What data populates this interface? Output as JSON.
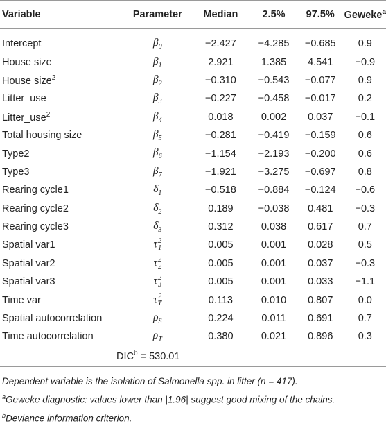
{
  "columns": {
    "variable": "Variable",
    "parameter": "Parameter",
    "median": "Median",
    "lower": "2.5%",
    "upper": "97.5%",
    "geweke": "Geweke",
    "geweke_sup": "a"
  },
  "rows": [
    {
      "variable": "Intercept",
      "var_sup": "",
      "param_sym": "β",
      "param_sub": "0",
      "param_sup": "",
      "median": "−2.427",
      "lower": "−4.285",
      "upper": "−0.685",
      "geweke": "0.9"
    },
    {
      "variable": "House size",
      "var_sup": "",
      "param_sym": "β",
      "param_sub": "1",
      "param_sup": "",
      "median": "2.921",
      "lower": "1.385",
      "upper": "4.541",
      "geweke": "−0.9"
    },
    {
      "variable": "House size",
      "var_sup": "2",
      "param_sym": "β",
      "param_sub": "2",
      "param_sup": "",
      "median": "−0.310",
      "lower": "−0.543",
      "upper": "−0.077",
      "geweke": "0.9"
    },
    {
      "variable": "Litter_use",
      "var_sup": "",
      "param_sym": "β",
      "param_sub": "3",
      "param_sup": "",
      "median": "−0.227",
      "lower": "−0.458",
      "upper": "−0.017",
      "geweke": "0.2"
    },
    {
      "variable": "Litter_use",
      "var_sup": "2",
      "param_sym": "β",
      "param_sub": "4",
      "param_sup": "",
      "median": "0.018",
      "lower": "0.002",
      "upper": "0.037",
      "geweke": "−0.1"
    },
    {
      "variable": "Total housing size",
      "var_sup": "",
      "param_sym": "β",
      "param_sub": "5",
      "param_sup": "",
      "median": "−0.281",
      "lower": "−0.419",
      "upper": "−0.159",
      "geweke": "0.6"
    },
    {
      "variable": "Type2",
      "var_sup": "",
      "param_sym": "β",
      "param_sub": "6",
      "param_sup": "",
      "median": "−1.154",
      "lower": "−2.193",
      "upper": "−0.200",
      "geweke": "0.6"
    },
    {
      "variable": "Type3",
      "var_sup": "",
      "param_sym": "β",
      "param_sub": "7",
      "param_sup": "",
      "median": "−1.921",
      "lower": "−3.275",
      "upper": "−0.697",
      "geweke": "0.8"
    },
    {
      "variable": "Rearing cycle1",
      "var_sup": "",
      "param_sym": "δ",
      "param_sub": "1",
      "param_sup": "",
      "median": "−0.518",
      "lower": "−0.884",
      "upper": "−0.124",
      "geweke": "−0.6"
    },
    {
      "variable": "Rearing cycle2",
      "var_sup": "",
      "param_sym": "δ",
      "param_sub": "2",
      "param_sup": "",
      "median": "0.189",
      "lower": "−0.038",
      "upper": "0.481",
      "geweke": "−0.3"
    },
    {
      "variable": "Rearing cycle3",
      "var_sup": "",
      "param_sym": "δ",
      "param_sub": "3",
      "param_sup": "",
      "median": "0.312",
      "lower": "0.038",
      "upper": "0.617",
      "geweke": "0.7"
    },
    {
      "variable": "Spatial var1",
      "var_sup": "",
      "param_sym": "τ",
      "param_sub": "1",
      "param_sup": "2",
      "median": "0.005",
      "lower": "0.001",
      "upper": "0.028",
      "geweke": "0.5"
    },
    {
      "variable": "Spatial var2",
      "var_sup": "",
      "param_sym": "τ",
      "param_sub": "2",
      "param_sup": "2",
      "median": "0.005",
      "lower": "0.001",
      "upper": "0.037",
      "geweke": "−0.3"
    },
    {
      "variable": "Spatial var3",
      "var_sup": "",
      "param_sym": "τ",
      "param_sub": "3",
      "param_sup": "2",
      "median": "0.005",
      "lower": "0.001",
      "upper": "0.033",
      "geweke": "−1.1"
    },
    {
      "variable": "Time var",
      "var_sup": "",
      "param_sym": "τ",
      "param_sub": "T",
      "param_sup": "2",
      "median": "0.113",
      "lower": "0.010",
      "upper": "0.807",
      "geweke": "0.0"
    },
    {
      "variable": "Spatial autocorrelation",
      "var_sup": "",
      "param_sym": "ρ",
      "param_sub": "S",
      "param_sup": "",
      "median": "0.224",
      "lower": "0.011",
      "upper": "0.691",
      "geweke": "0.7"
    },
    {
      "variable": "Time autocorrelation",
      "var_sup": "",
      "param_sym": "ρ",
      "param_sub": "T",
      "param_sup": "",
      "median": "0.380",
      "lower": "0.021",
      "upper": "0.896",
      "geweke": "0.3"
    }
  ],
  "dic": {
    "label": "DIC",
    "sup": "b",
    "value": " = 530.01"
  },
  "notes": {
    "line1": "Dependent variable is the isolation of Salmonella spp. in litter (n = 417).",
    "line2_sup": "a",
    "line2": "Geweke diagnostic: values lower than |1.96| suggest good mixing of the chains.",
    "line3_sup": "b",
    "line3": "Deviance information criterion."
  }
}
